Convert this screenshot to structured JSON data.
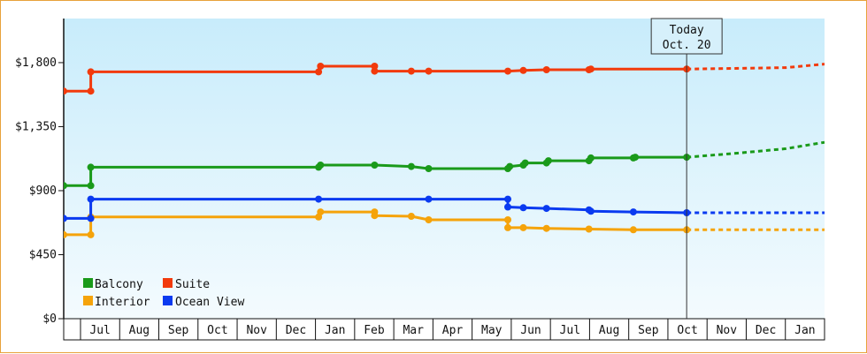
{
  "chart_data": {
    "type": "line",
    "today_label": {
      "line1": "Today",
      "line2": "Oct. 20"
    },
    "y_ticks": [
      {
        "value": 0,
        "label": "$0"
      },
      {
        "value": 450,
        "label": "$450"
      },
      {
        "value": 900,
        "label": "$900"
      },
      {
        "value": 1350,
        "label": "$1,350"
      },
      {
        "value": 1800,
        "label": "$1,800"
      }
    ],
    "ylim": [
      0,
      2110
    ],
    "months": [
      "Jul",
      "Aug",
      "Sep",
      "Oct",
      "Nov",
      "Dec",
      "Jan",
      "Feb",
      "Mar",
      "Apr",
      "May",
      "Jun",
      "Jul",
      "Aug",
      "Sep",
      "Oct",
      "Nov",
      "Dec",
      "Jan"
    ],
    "grid": false,
    "legend_position": "bottom-left",
    "colors": {
      "Balcony": "#1a9a1a",
      "Suite": "#f23a0c",
      "Interior": "#f5a30a",
      "Ocean View": "#0a3af0",
      "background_top": "#c8ecfb",
      "background_bottom": "#f4fbfe"
    },
    "today_x": 16.13,
    "x_range": [
      0,
      19.7
    ],
    "series": [
      {
        "name": "Balcony",
        "points": [
          [
            0,
            935
          ],
          [
            0.7,
            935
          ],
          [
            0.7,
            1065
          ],
          [
            6.6,
            1065
          ],
          [
            6.65,
            1080
          ],
          [
            8.05,
            1080
          ],
          [
            9.0,
            1070
          ],
          [
            9.45,
            1055
          ],
          [
            11.5,
            1055
          ],
          [
            11.55,
            1070
          ],
          [
            11.9,
            1080
          ],
          [
            11.95,
            1095
          ],
          [
            12.5,
            1095
          ],
          [
            12.55,
            1110
          ],
          [
            13.6,
            1110
          ],
          [
            13.65,
            1130
          ],
          [
            14.75,
            1130
          ],
          [
            14.8,
            1135
          ],
          [
            16.13,
            1135
          ]
        ],
        "markers": [
          [
            0,
            935
          ],
          [
            0.7,
            935
          ],
          [
            0.7,
            1065
          ],
          [
            6.6,
            1065
          ],
          [
            6.65,
            1080
          ],
          [
            8.05,
            1080
          ],
          [
            9.0,
            1070
          ],
          [
            9.45,
            1055
          ],
          [
            11.5,
            1055
          ],
          [
            11.55,
            1070
          ],
          [
            11.9,
            1080
          ],
          [
            11.95,
            1095
          ],
          [
            12.5,
            1095
          ],
          [
            12.55,
            1110
          ],
          [
            13.6,
            1110
          ],
          [
            13.65,
            1130
          ],
          [
            14.75,
            1130
          ],
          [
            14.8,
            1135
          ],
          [
            16.13,
            1135
          ]
        ],
        "forecast": [
          [
            16.13,
            1135
          ],
          [
            17.5,
            1165
          ],
          [
            18.7,
            1195
          ],
          [
            19.7,
            1240
          ]
        ]
      },
      {
        "name": "Suite",
        "points": [
          [
            0,
            1600
          ],
          [
            0.7,
            1600
          ],
          [
            0.7,
            1735
          ],
          [
            6.6,
            1735
          ],
          [
            6.65,
            1775
          ],
          [
            8.05,
            1775
          ],
          [
            8.05,
            1740
          ],
          [
            9.0,
            1740
          ],
          [
            9.45,
            1740
          ],
          [
            11.5,
            1740
          ],
          [
            11.9,
            1745
          ],
          [
            12.5,
            1750
          ],
          [
            13.6,
            1750
          ],
          [
            13.65,
            1755
          ],
          [
            16.13,
            1755
          ]
        ],
        "markers": [
          [
            0,
            1600
          ],
          [
            0.7,
            1600
          ],
          [
            0.7,
            1735
          ],
          [
            6.6,
            1735
          ],
          [
            6.65,
            1775
          ],
          [
            8.05,
            1775
          ],
          [
            8.05,
            1740
          ],
          [
            9.0,
            1740
          ],
          [
            9.45,
            1740
          ],
          [
            11.5,
            1740
          ],
          [
            11.9,
            1745
          ],
          [
            12.5,
            1750
          ],
          [
            13.6,
            1750
          ],
          [
            13.65,
            1755
          ],
          [
            16.13,
            1755
          ]
        ],
        "forecast": [
          [
            16.13,
            1755
          ],
          [
            17.5,
            1760
          ],
          [
            18.7,
            1765
          ],
          [
            19.7,
            1790
          ]
        ]
      },
      {
        "name": "Interior",
        "points": [
          [
            0,
            590
          ],
          [
            0.7,
            590
          ],
          [
            0.7,
            715
          ],
          [
            6.6,
            715
          ],
          [
            6.65,
            750
          ],
          [
            8.05,
            750
          ],
          [
            8.05,
            725
          ],
          [
            9.0,
            720
          ],
          [
            9.45,
            695
          ],
          [
            11.5,
            695
          ],
          [
            11.5,
            640
          ],
          [
            11.9,
            640
          ],
          [
            12.5,
            635
          ],
          [
            13.6,
            630
          ],
          [
            14.75,
            625
          ],
          [
            16.13,
            625
          ]
        ],
        "markers": [
          [
            0,
            590
          ],
          [
            0.7,
            590
          ],
          [
            0.7,
            715
          ],
          [
            6.6,
            715
          ],
          [
            6.65,
            750
          ],
          [
            8.05,
            750
          ],
          [
            8.05,
            725
          ],
          [
            9.0,
            720
          ],
          [
            9.45,
            695
          ],
          [
            11.5,
            695
          ],
          [
            11.5,
            640
          ],
          [
            11.9,
            640
          ],
          [
            12.5,
            635
          ],
          [
            13.6,
            630
          ],
          [
            14.75,
            625
          ],
          [
            16.13,
            625
          ]
        ],
        "forecast": [
          [
            16.13,
            625
          ],
          [
            19.7,
            625
          ]
        ]
      },
      {
        "name": "Ocean View",
        "points": [
          [
            0,
            705
          ],
          [
            0.7,
            705
          ],
          [
            0.7,
            840
          ],
          [
            6.6,
            840
          ],
          [
            9.45,
            840
          ],
          [
            11.5,
            840
          ],
          [
            11.5,
            785
          ],
          [
            11.9,
            780
          ],
          [
            12.5,
            775
          ],
          [
            13.6,
            765
          ],
          [
            13.65,
            755
          ],
          [
            14.75,
            750
          ],
          [
            16.13,
            745
          ]
        ],
        "markers": [
          [
            0,
            705
          ],
          [
            0.7,
            705
          ],
          [
            0.7,
            840
          ],
          [
            6.6,
            840
          ],
          [
            9.45,
            840
          ],
          [
            11.5,
            840
          ],
          [
            11.5,
            785
          ],
          [
            11.9,
            780
          ],
          [
            12.5,
            775
          ],
          [
            13.6,
            765
          ],
          [
            13.65,
            755
          ],
          [
            14.75,
            750
          ],
          [
            16.13,
            745
          ]
        ],
        "forecast": [
          [
            16.13,
            745
          ],
          [
            19.7,
            745
          ]
        ]
      }
    ]
  }
}
